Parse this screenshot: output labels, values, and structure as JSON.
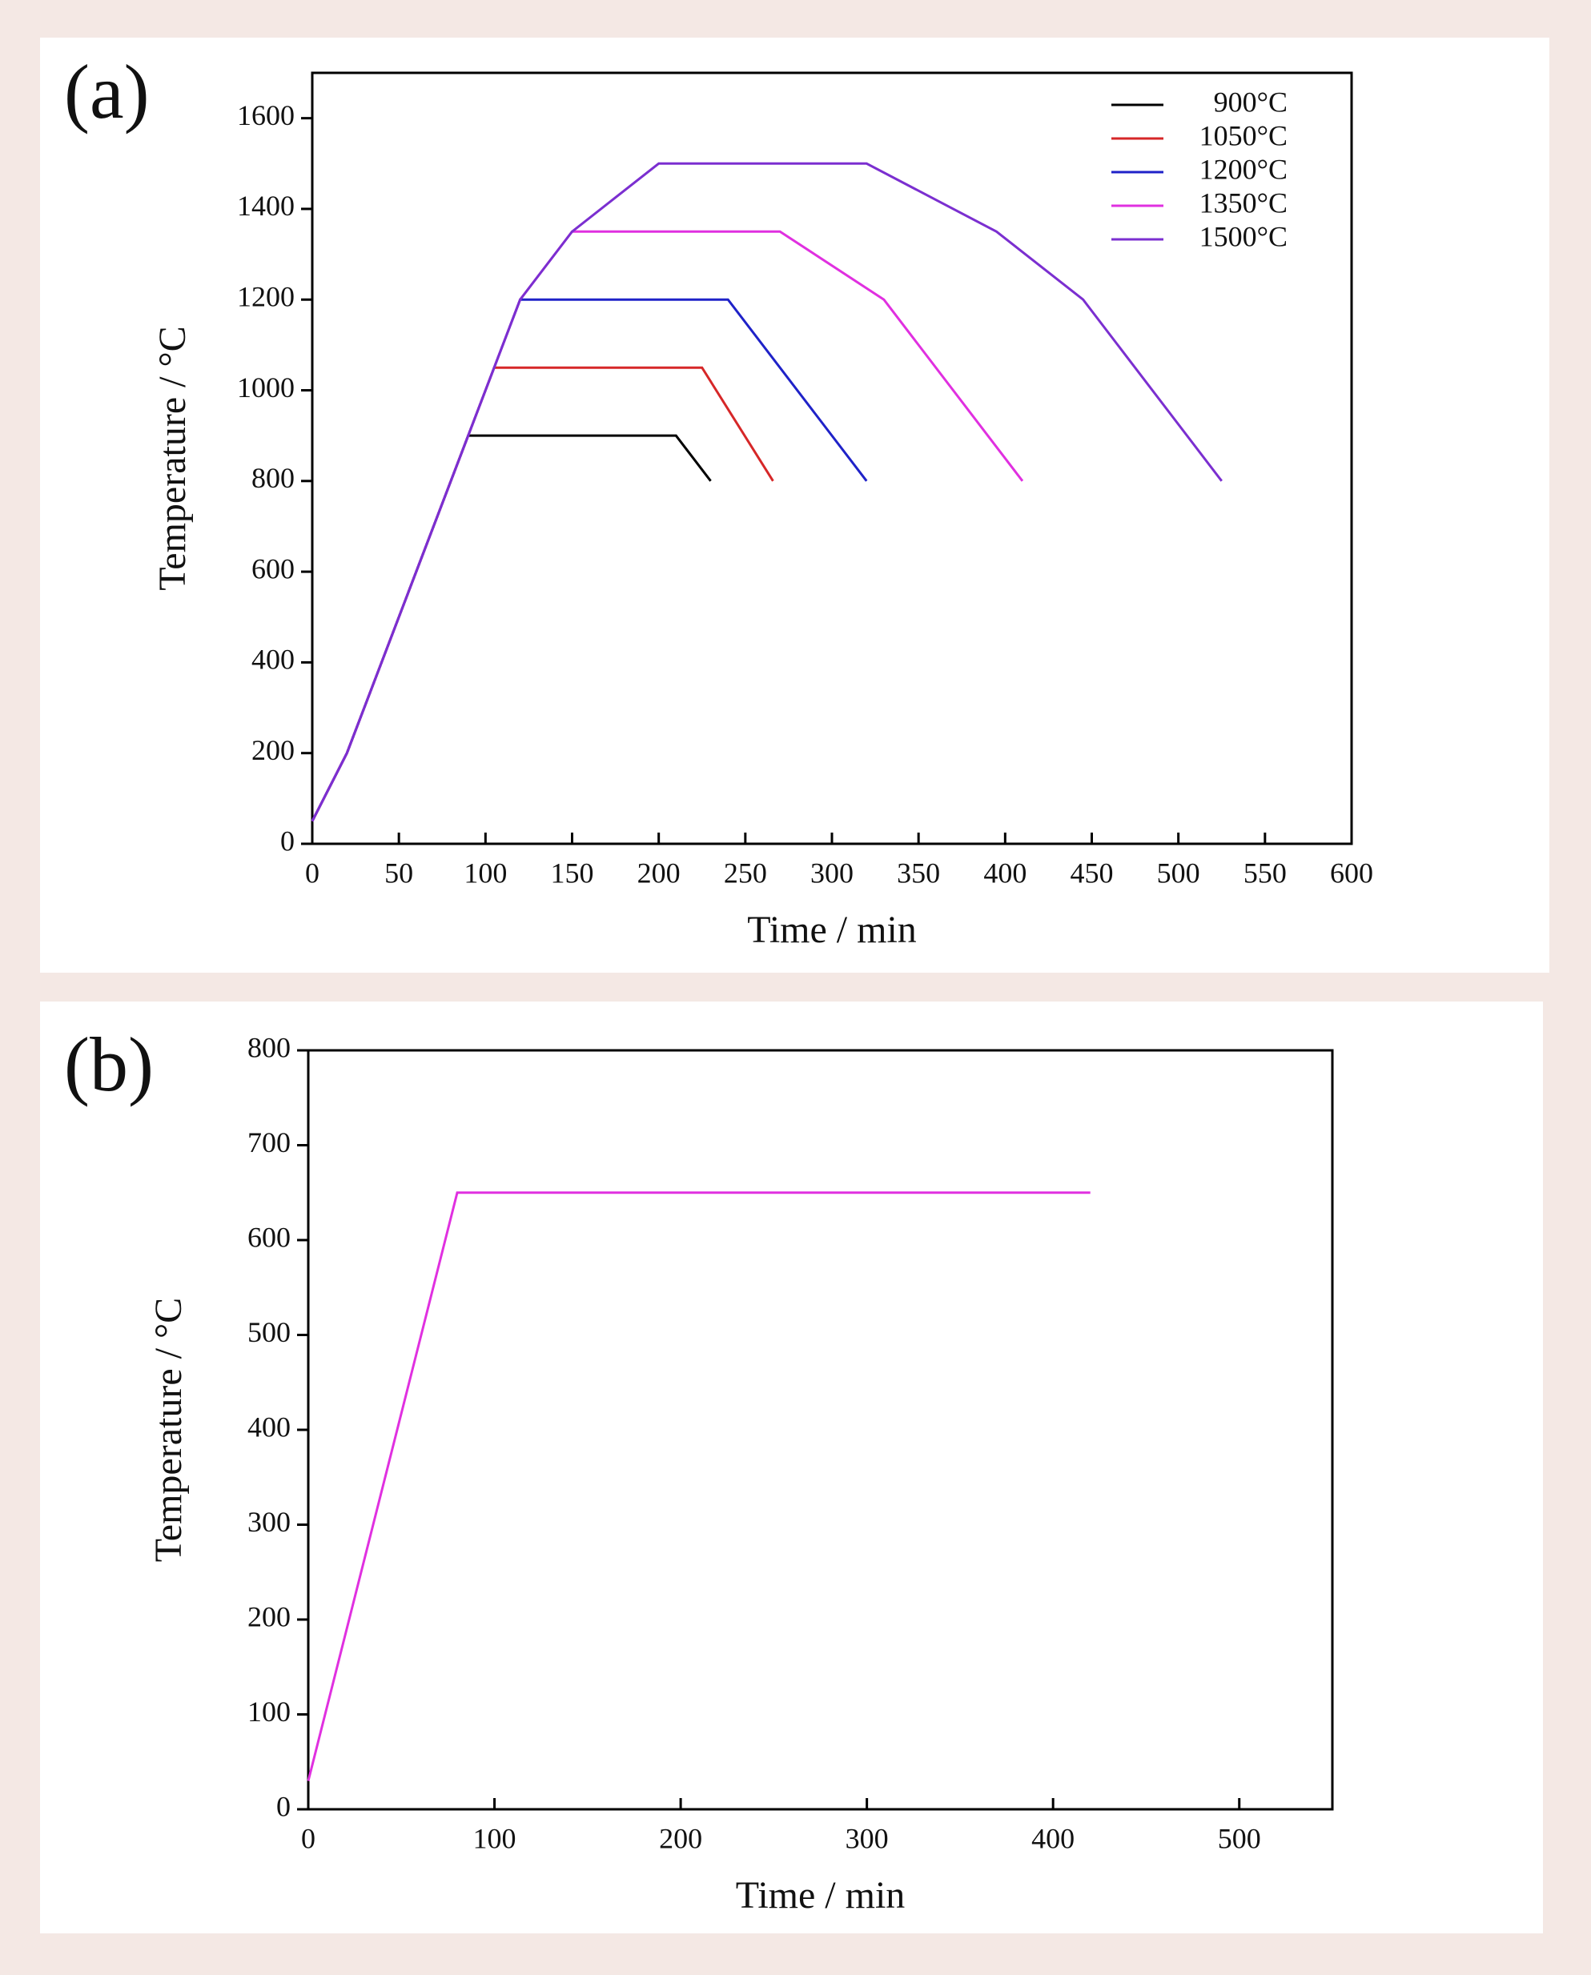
{
  "chart_data": [
    {
      "type": "line",
      "panel_label": "(a)",
      "xlabel": "Time / min",
      "ylabel": "Temperature / °C",
      "xlim": [
        0,
        600
      ],
      "xticks": [
        0,
        50,
        100,
        150,
        200,
        250,
        300,
        350,
        400,
        450,
        500,
        550,
        600
      ],
      "ylim": [
        0,
        1700
      ],
      "yticks": [
        0,
        200,
        400,
        600,
        800,
        1000,
        1200,
        1400,
        1600
      ],
      "legend": "upper right",
      "series": [
        {
          "name": "900°C",
          "color": "#000000",
          "x": [
            0,
            20,
            90,
            210,
            230
          ],
          "values": [
            50,
            200,
            900,
            900,
            800
          ]
        },
        {
          "name": "1050°C",
          "color": "#d62728",
          "x": [
            0,
            20,
            105,
            225,
            266
          ],
          "values": [
            50,
            200,
            1050,
            1050,
            800
          ]
        },
        {
          "name": "1200°C",
          "color": "#1f22c8",
          "x": [
            0,
            20,
            120,
            240,
            320
          ],
          "values": [
            50,
            200,
            1200,
            1200,
            800
          ]
        },
        {
          "name": "1350°C",
          "color": "#e030e0",
          "x": [
            0,
            20,
            120,
            150,
            270,
            330,
            410
          ],
          "values": [
            50,
            200,
            1200,
            1350,
            1350,
            1200,
            800
          ]
        },
        {
          "name": "1500°C",
          "color": "#7b2fd0",
          "x": [
            0,
            20,
            120,
            150,
            200,
            320,
            395,
            445,
            525
          ],
          "values": [
            50,
            200,
            1200,
            1350,
            1500,
            1500,
            1350,
            1200,
            800
          ]
        }
      ]
    },
    {
      "type": "line",
      "panel_label": "(b)",
      "xlabel": "Time / min",
      "ylabel": "Temperature / °C",
      "xlim": [
        0,
        550
      ],
      "xticks": [
        0,
        100,
        200,
        300,
        400,
        500
      ],
      "ylim": [
        0,
        800
      ],
      "yticks": [
        0,
        100,
        200,
        300,
        400,
        500,
        600,
        700,
        800
      ],
      "series": [
        {
          "color": "#e030e0",
          "x": [
            0,
            80,
            420
          ],
          "values": [
            30,
            650,
            650
          ]
        }
      ]
    }
  ]
}
